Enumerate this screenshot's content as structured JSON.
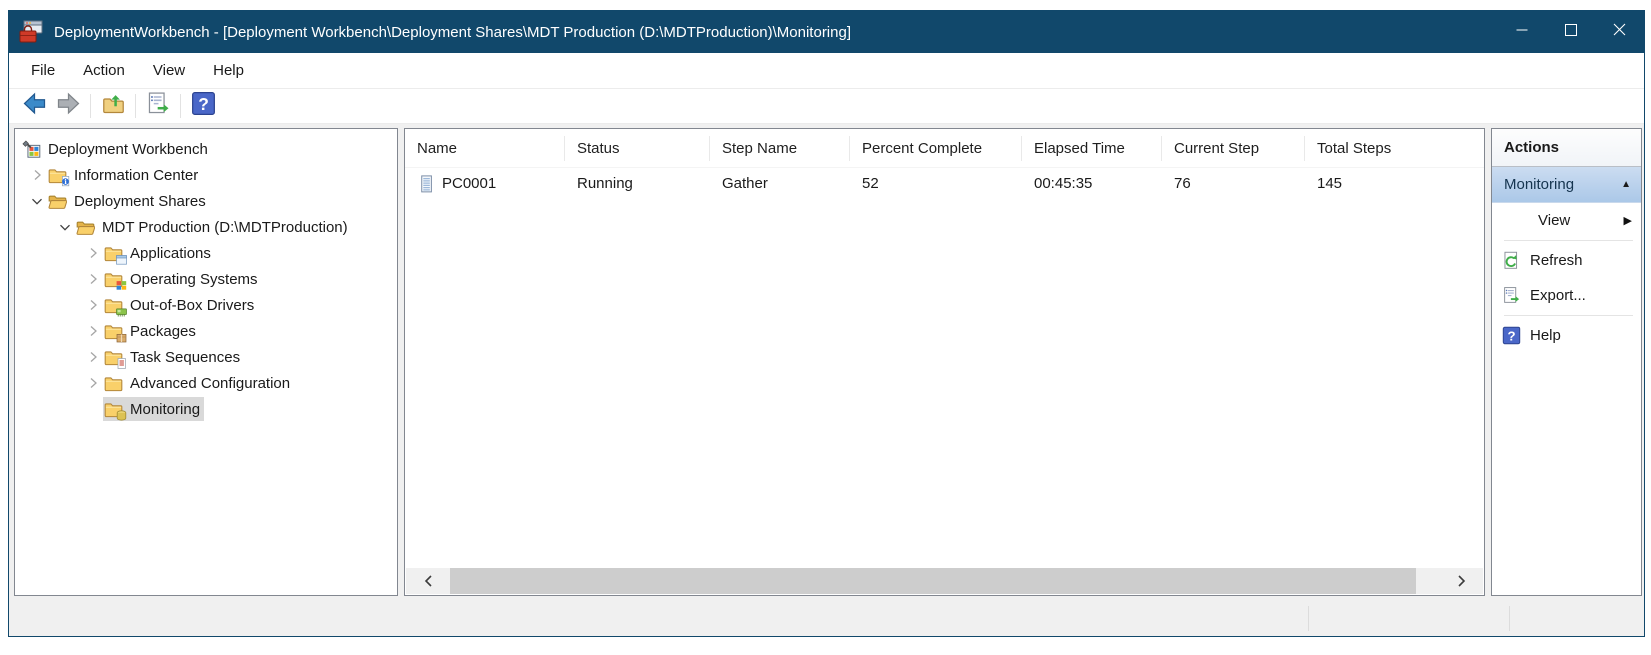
{
  "window": {
    "title": "DeploymentWorkbench - [Deployment Workbench\\Deployment Shares\\MDT Production (D:\\MDTProduction)\\Monitoring]",
    "controls": [
      {
        "name": "minimize"
      },
      {
        "name": "maximize"
      },
      {
        "name": "close"
      }
    ]
  },
  "menu": {
    "items": [
      "File",
      "Action",
      "View",
      "Help"
    ]
  },
  "toolbar": {
    "buttons": [
      {
        "name": "back",
        "icon": "back-arrow"
      },
      {
        "name": "forward",
        "icon": "forward-arrow"
      },
      {
        "separator": true
      },
      {
        "name": "up-one-level",
        "icon": "up-folder"
      },
      {
        "separator": true
      },
      {
        "name": "export-list",
        "icon": "export-list"
      },
      {
        "separator": true
      },
      {
        "name": "help",
        "icon": "help"
      }
    ]
  },
  "tree": {
    "items": [
      {
        "label": "Deployment Workbench",
        "level": 0,
        "icon": "workbench",
        "expander": "none",
        "selected": false
      },
      {
        "label": "Information Center",
        "level": 1,
        "icon": "folder-info",
        "expander": "collapsed",
        "selected": false
      },
      {
        "label": "Deployment Shares",
        "level": 1,
        "icon": "folder-open",
        "expander": "expanded",
        "selected": false
      },
      {
        "label": "MDT Production (D:\\MDTProduction)",
        "level": 2,
        "icon": "folder-open",
        "expander": "expanded",
        "selected": false
      },
      {
        "label": "Applications",
        "level": 3,
        "icon": "folder-app",
        "expander": "collapsed",
        "selected": false
      },
      {
        "label": "Operating Systems",
        "level": 3,
        "icon": "folder-os",
        "expander": "collapsed",
        "selected": false
      },
      {
        "label": "Out-of-Box Drivers",
        "level": 3,
        "icon": "folder-driver",
        "expander": "collapsed",
        "selected": false
      },
      {
        "label": "Packages",
        "level": 3,
        "icon": "folder-package",
        "expander": "collapsed",
        "selected": false
      },
      {
        "label": "Task Sequences",
        "level": 3,
        "icon": "folder-task",
        "expander": "collapsed",
        "selected": false
      },
      {
        "label": "Advanced Configuration",
        "level": 3,
        "icon": "folder-plain",
        "expander": "collapsed",
        "selected": false
      },
      {
        "label": "Monitoring",
        "level": 3,
        "icon": "folder-monitor",
        "expander": "none",
        "selected": true
      }
    ]
  },
  "table": {
    "columns": [
      "Name",
      "Status",
      "Step Name",
      "Percent Complete",
      "Elapsed Time",
      "Current Step",
      "Total Steps"
    ],
    "rows": [
      [
        "PC0001",
        "Running",
        "Gather",
        "52",
        "00:45:35",
        "76",
        "145"
      ]
    ]
  },
  "actions": {
    "title": "Actions",
    "group": {
      "label": "Monitoring",
      "collapse_icon": "collapse-caret"
    },
    "items": [
      {
        "label": "View",
        "submenu": true,
        "separator_after": true
      },
      {
        "label": "Refresh",
        "icon": "refresh"
      },
      {
        "label": "Export...",
        "icon": "export-list",
        "separator_after": true
      },
      {
        "label": "Help",
        "icon": "help"
      }
    ]
  },
  "colors": {
    "titlebar_bg": "#11486b",
    "workarea_bg": "#f0f0f0",
    "pane_border": "#828790",
    "tree_selection_bg": "#d9d9d9",
    "action_selected_top": "#cbdcf1",
    "action_selected_bottom": "#abc8e8",
    "scrollbar_thumb": "#cdcdcd",
    "folder_yellow": "#f9d06a",
    "accent_green": "#3fae49",
    "help_blue": "#4a67c8",
    "back_arrow_blue": "#3b8ac9"
  }
}
